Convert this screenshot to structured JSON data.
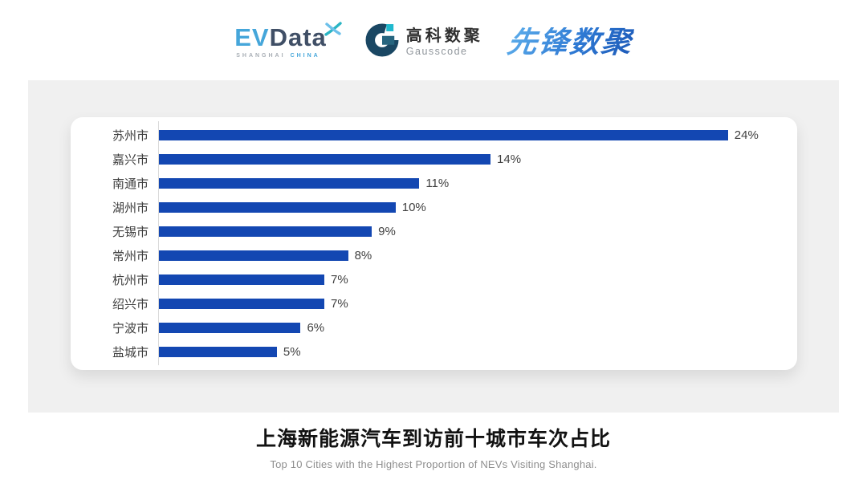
{
  "header": {
    "evdata": {
      "ev": "EV",
      "data": "Data",
      "sub_left": "SHANGHAI",
      "sub_right": "CHINA"
    },
    "gausscode": {
      "cn": "高科数聚",
      "en": "Gausscode"
    },
    "pioneer": {
      "text": "先锋数聚"
    }
  },
  "chart_data": {
    "type": "bar",
    "orientation": "horizontal",
    "categories": [
      "苏州市",
      "嘉兴市",
      "南通市",
      "湖州市",
      "无锡市",
      "常州市",
      "杭州市",
      "绍兴市",
      "宁波市",
      "盐城市"
    ],
    "values": [
      24,
      14,
      11,
      10,
      9,
      8,
      7,
      7,
      6,
      5
    ],
    "value_labels": [
      "24%",
      "14%",
      "11%",
      "10%",
      "9%",
      "8%",
      "7%",
      "7%",
      "6%",
      "5%"
    ],
    "unit": "%",
    "bar_color": "#1347b2",
    "grid": false,
    "axis_line_color": "#d9d9d9",
    "label_color": "#3f3f3f",
    "title": "上海新能源汽车到访前十城市车次占比"
  },
  "footer": {
    "title": "上海新能源汽车到访前十城市车次占比",
    "subtitle": "Top 10 Cities with the Highest Proportion of  NEVs Visiting Shanghai."
  },
  "colors": {
    "panel_background": "#f0f0f0",
    "card_background": "#ffffff",
    "bar_blue": "#1347b2",
    "evdata_blue": "#45a6da",
    "evdata_dark": "#404f66",
    "gauss_navy": "#1a4763",
    "gauss_teal": "#1fb9ce",
    "pioneer_blue": "#2f7ad4"
  }
}
